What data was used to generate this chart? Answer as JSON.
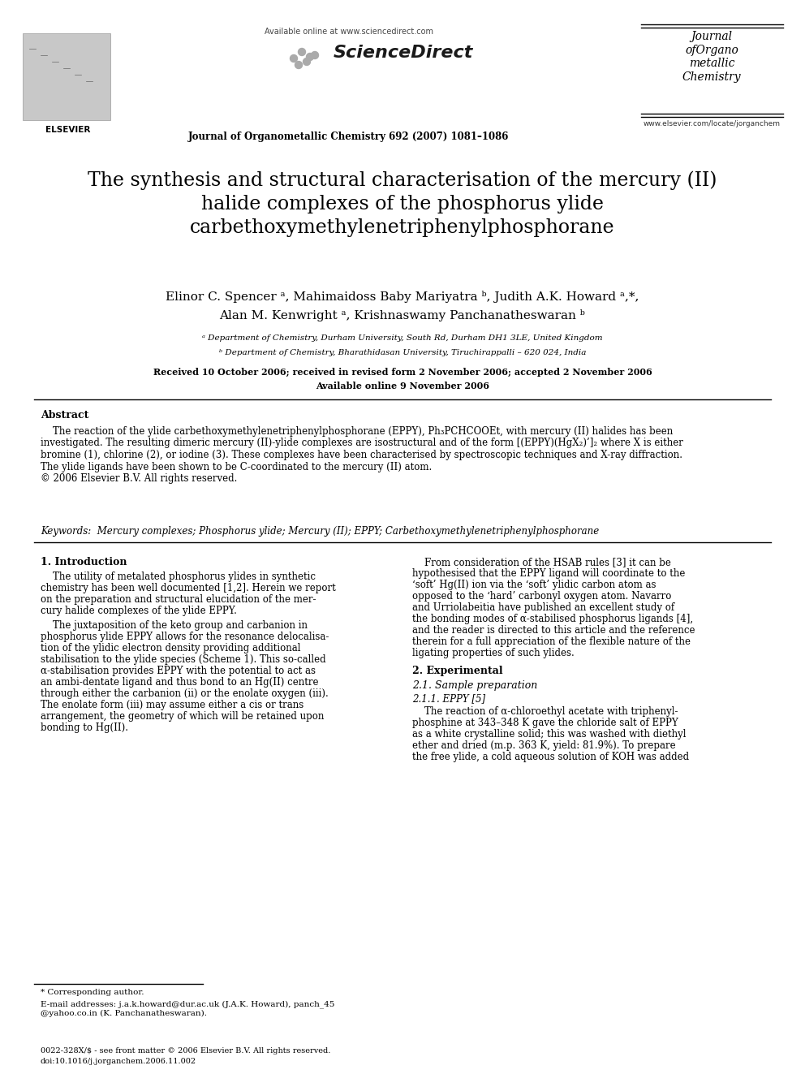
{
  "bg_color": "#ffffff",
  "available_online": "Available online at www.sciencedirect.com",
  "journal_line": "Journal of Organometallic Chemistry 692 (2007) 1081–1086",
  "website": "www.elsevier.com/locate/jorganchem",
  "title": "The synthesis and structural characterisation of the mercury (II)\nhalide complexes of the phosphorus ylide\ncarbethoxymethylenetriphenylphosphorane",
  "authors_line1": "Elinor C. Spencer ᵃ, Mahimaidoss Baby Mariyatra ᵇ, Judith A.K. Howard ᵃ,*,",
  "authors_line2": "Alan M. Kenwright ᵃ, Krishnaswamy Panchanatheswaran ᵇ",
  "affil_a": "ᵃ Department of Chemistry, Durham University, South Rd, Durham DH1 3LE, United Kingdom",
  "affil_b": "ᵇ Department of Chemistry, Bharathidasan University, Tiruchirappalli – 620 024, India",
  "received": "Received 10 October 2006; received in revised form 2 November 2006; accepted 2 November 2006",
  "available": "Available online 9 November 2006",
  "abstract_title": "Abstract",
  "abstract_body": "    The reaction of the ylide carbethoxymethylenetriphenylphosphorane (EPPY), Ph₃PCHCOOEt, with mercury (II) halides has been\ninvestigated. The resulting dimeric mercury (II)-ylide complexes are isostructural and of the form [(EPPY)(HgX₂)’]₂ where X is either\nbromine (1), chlorine (2), or iodine (3). These complexes have been characterised by spectroscopic techniques and X-ray diffraction.\nThe ylide ligands have been shown to be C-coordinated to the mercury (II) atom.\n© 2006 Elsevier B.V. All rights reserved.",
  "keywords": "Keywords:  Mercury complexes; Phosphorus ylide; Mercury (II); EPPY; Carbethoxymethylenetriphenylphosphorane",
  "sec1": "1. Introduction",
  "c1p1": "    The utility of metalated phosphorus ylides in synthetic\nchemistry has been well documented [1,2]. Herein we report\non the preparation and structural elucidation of the mer-\ncury halide complexes of the ylide EPPY.",
  "c1p2": "    The juxtaposition of the keto group and carbanion in\nphosphorus ylide EPPY allows for the resonance delocalisa-\ntion of the ylidic electron density providing additional\nstabilisation to the ylide species (Scheme 1). This so-called\nα-stabilisation provides EPPY with the potential to act as\nan ambi-dentate ligand and thus bond to an Hg(II) centre\nthrough either the carbanion (ii) or the enolate oxygen (iii).\nThe enolate form (iii) may assume either a cis or trans\narrangement, the geometry of which will be retained upon\nbonding to Hg(II).",
  "c2p1": "    From consideration of the HSAB rules [3] it can be\nhypothesised that the EPPY ligand will coordinate to the\n‘soft’ Hg(II) ion via the ‘soft’ ylidic carbon atom as\nopposed to the ‘hard’ carbonyl oxygen atom. Navarro\nand Urriolabeitia have published an excellent study of\nthe bonding modes of α-stabilised phosphorus ligands [4],\nand the reader is directed to this article and the reference\ntherein for a full appreciation of the flexible nature of the\nligating properties of such ylides.",
  "sec2": "2. Experimental",
  "sec21": "2.1. Sample preparation",
  "sec211": "2.1.1. EPPY [5]",
  "c2p2": "    The reaction of α-chloroethyl acetate with triphenyl-\nphosphine at 343–348 K gave the chloride salt of EPPY\nas a white crystalline solid; this was washed with diethyl\nether and dried (m.p. 363 K, yield: 81.9%). To prepare\nthe free ylide, a cold aqueous solution of KOH was added",
  "fn_line": "* Corresponding author.",
  "fn_email": "E-mail addresses: j.a.k.howard@dur.ac.uk (J.A.K. Howard), panch_45\n@yahoo.co.in (K. Panchanatheswaran).",
  "footer": "0022-328X/$ - see front matter © 2006 Elsevier B.V. All rights reserved.\ndoi:10.1016/j.jorganchem.2006.11.002"
}
